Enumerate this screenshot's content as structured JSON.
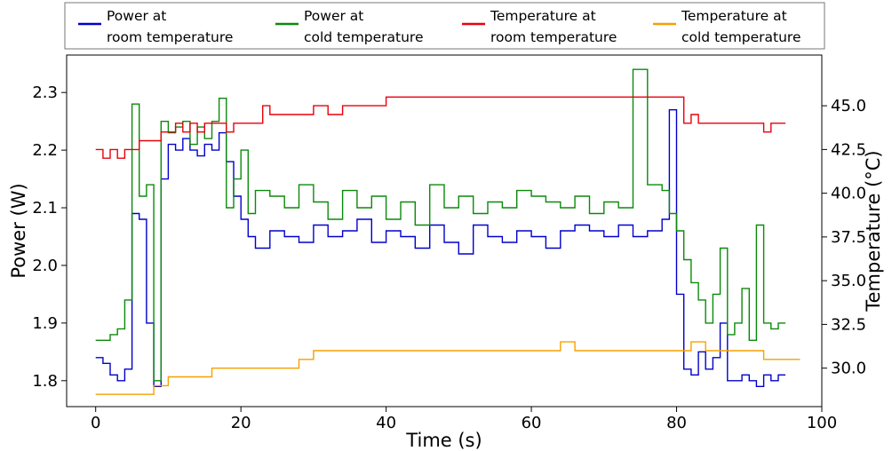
{
  "chart_data": {
    "type": "line",
    "step": true,
    "title": "",
    "xlabel": "Time (s)",
    "ylabel": "Power (W)",
    "y2label": "Temperature (°C)",
    "xlim": [
      -4,
      100
    ],
    "ylim": [
      1.755,
      2.365
    ],
    "y2lim": [
      27.8,
      47.9
    ],
    "xticks": [
      0,
      20,
      40,
      60,
      80,
      100
    ],
    "yticks": [
      1.8,
      1.9,
      2.0,
      2.1,
      2.2,
      2.3
    ],
    "ytick_labels": [
      "1.8",
      "1.9",
      "2.0",
      "2.1",
      "2.2",
      "2.3"
    ],
    "y2ticks": [
      30.0,
      32.5,
      35.0,
      37.5,
      40.0,
      42.5,
      45.0
    ],
    "y2tick_labels": [
      "30.0",
      "32.5",
      "35.0",
      "37.5",
      "40.0",
      "42.5",
      "45.0"
    ],
    "grid": false,
    "legend_position": "top (above plot)",
    "legend": [
      {
        "line1": "Power at",
        "line2": "room temperature",
        "color": "#0000cc"
      },
      {
        "line1": "Power at",
        "line2": "cold temperature",
        "color": "#0a8a0a"
      },
      {
        "line1": "Temperature at",
        "line2": "room temperature",
        "color": "#e8000b"
      },
      {
        "line1": "Temperature at",
        "line2": "cold temperature",
        "color": "#f5a000"
      }
    ],
    "series": [
      {
        "name": "Power at room temperature",
        "axis": "left",
        "color": "#0000cc",
        "x": [
          0,
          1,
          2,
          3,
          4,
          5,
          6,
          7,
          8,
          9,
          10,
          11,
          12,
          13,
          14,
          15,
          16,
          17,
          18,
          19,
          20,
          21,
          22,
          24,
          26,
          28,
          30,
          32,
          34,
          36,
          38,
          40,
          42,
          44,
          46,
          48,
          50,
          52,
          54,
          56,
          58,
          60,
          62,
          64,
          66,
          68,
          70,
          72,
          74,
          76,
          78,
          79,
          80,
          81,
          82,
          83,
          84,
          85,
          86,
          87,
          88,
          89,
          90,
          91,
          92,
          93,
          94
        ],
        "values": [
          1.84,
          1.83,
          1.81,
          1.8,
          1.82,
          2.09,
          2.08,
          1.9,
          1.79,
          2.15,
          2.21,
          2.2,
          2.22,
          2.2,
          2.19,
          2.21,
          2.2,
          2.23,
          2.18,
          2.12,
          2.08,
          2.05,
          2.03,
          2.06,
          2.05,
          2.04,
          2.07,
          2.05,
          2.06,
          2.08,
          2.04,
          2.06,
          2.05,
          2.03,
          2.07,
          2.04,
          2.02,
          2.07,
          2.05,
          2.04,
          2.06,
          2.05,
          2.03,
          2.06,
          2.07,
          2.06,
          2.05,
          2.07,
          2.05,
          2.06,
          2.08,
          2.27,
          1.95,
          1.82,
          1.81,
          1.85,
          1.82,
          1.84,
          1.9,
          1.8,
          1.8,
          1.81,
          1.8,
          1.79,
          1.81,
          1.8,
          1.81
        ]
      },
      {
        "name": "Power at cold temperature",
        "axis": "left",
        "color": "#0a8a0a",
        "x": [
          0,
          1,
          2,
          3,
          4,
          5,
          6,
          7,
          8,
          9,
          10,
          11,
          12,
          13,
          14,
          15,
          16,
          17,
          18,
          19,
          20,
          21,
          22,
          24,
          26,
          28,
          30,
          32,
          34,
          36,
          38,
          40,
          42,
          44,
          46,
          48,
          50,
          52,
          54,
          56,
          58,
          60,
          62,
          64,
          66,
          68,
          70,
          72,
          74,
          76,
          78,
          79,
          80,
          81,
          82,
          83,
          84,
          85,
          86,
          87,
          88,
          89,
          90,
          91,
          92,
          93,
          94
        ],
        "values": [
          1.87,
          1.87,
          1.88,
          1.89,
          1.94,
          2.28,
          2.12,
          2.14,
          1.8,
          2.25,
          2.23,
          2.24,
          2.25,
          2.21,
          2.24,
          2.22,
          2.25,
          2.29,
          2.1,
          2.15,
          2.2,
          2.09,
          2.13,
          2.12,
          2.1,
          2.14,
          2.11,
          2.08,
          2.13,
          2.1,
          2.12,
          2.08,
          2.11,
          2.07,
          2.14,
          2.1,
          2.12,
          2.09,
          2.11,
          2.1,
          2.13,
          2.12,
          2.11,
          2.1,
          2.12,
          2.09,
          2.11,
          2.1,
          2.34,
          2.14,
          2.13,
          2.09,
          2.06,
          2.01,
          1.97,
          1.94,
          1.9,
          1.95,
          2.03,
          1.88,
          1.9,
          1.96,
          1.87,
          2.07,
          1.9,
          1.89,
          1.9
        ]
      },
      {
        "name": "Temperature at room temperature",
        "axis": "right",
        "color": "#e8000b",
        "x": [
          0,
          1,
          2,
          3,
          4,
          5,
          6,
          7,
          8,
          9,
          10,
          11,
          12,
          13,
          14,
          15,
          16,
          17,
          18,
          19,
          20,
          21,
          22,
          23,
          24,
          25,
          26,
          28,
          30,
          32,
          34,
          36,
          38,
          40,
          42,
          44,
          46,
          48,
          50,
          52,
          54,
          56,
          58,
          60,
          62,
          64,
          66,
          68,
          70,
          72,
          74,
          76,
          78,
          79,
          80,
          81,
          82,
          83,
          84,
          85,
          86,
          87,
          88,
          89,
          90,
          91,
          92,
          93,
          94
        ],
        "values": [
          42.5,
          42.0,
          42.5,
          42.0,
          42.5,
          42.5,
          43.0,
          43.0,
          43.0,
          43.5,
          43.5,
          44.0,
          43.5,
          44.0,
          43.5,
          44.0,
          44.0,
          44.0,
          43.5,
          44.0,
          44.0,
          44.0,
          44.0,
          45.0,
          44.5,
          44.5,
          44.5,
          44.5,
          45.0,
          44.5,
          45.0,
          45.0,
          45.0,
          45.5,
          45.5,
          45.5,
          45.5,
          45.5,
          45.5,
          45.5,
          45.5,
          45.5,
          45.5,
          45.5,
          45.5,
          45.5,
          45.5,
          45.5,
          45.5,
          45.5,
          45.5,
          45.5,
          45.5,
          45.5,
          45.5,
          44.0,
          44.5,
          44.0,
          44.0,
          44.0,
          44.0,
          44.0,
          44.0,
          44.0,
          44.0,
          44.0,
          43.5,
          44.0,
          44.0
        ]
      },
      {
        "name": "Temperature at cold temperature",
        "axis": "right",
        "color": "#f5a000",
        "x": [
          0,
          2,
          4,
          6,
          8,
          10,
          12,
          14,
          16,
          18,
          20,
          22,
          24,
          26,
          28,
          30,
          32,
          34,
          36,
          38,
          40,
          42,
          44,
          46,
          48,
          50,
          52,
          54,
          56,
          58,
          60,
          62,
          64,
          66,
          68,
          70,
          72,
          74,
          76,
          78,
          80,
          82,
          84,
          86,
          88,
          90,
          92,
          94,
          96
        ],
        "values": [
          28.5,
          28.5,
          28.5,
          28.5,
          29.0,
          29.5,
          29.5,
          29.5,
          30.0,
          30.0,
          30.0,
          30.0,
          30.0,
          30.0,
          30.5,
          31.0,
          31.0,
          31.0,
          31.0,
          31.0,
          31.0,
          31.0,
          31.0,
          31.0,
          31.0,
          31.0,
          31.0,
          31.0,
          31.0,
          31.0,
          31.0,
          31.0,
          31.5,
          31.0,
          31.0,
          31.0,
          31.0,
          31.0,
          31.0,
          31.0,
          31.0,
          31.5,
          31.0,
          31.0,
          31.0,
          31.0,
          30.5,
          30.5,
          30.5
        ]
      }
    ]
  }
}
